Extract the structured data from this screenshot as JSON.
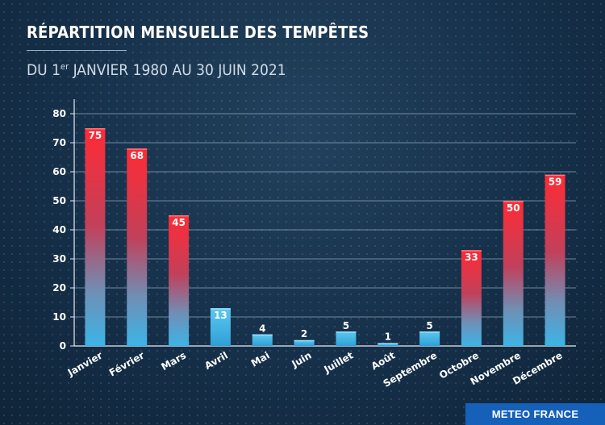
{
  "header": {
    "title": "RÉPARTITION MENSUELLE DES TEMPÊTES",
    "subtitle_pre": "DU 1",
    "subtitle_sup": "er",
    "subtitle_post": " JANVIER 1980 AU 30 JUIN 2021"
  },
  "brand": {
    "label": "METEO FRANCE"
  },
  "colors": {
    "high": "#e8303a",
    "low": "#3bb0e0",
    "background": "#16304a",
    "brand": "#1560b8"
  },
  "chart_data": {
    "type": "bar",
    "categories": [
      "Janvier",
      "Février",
      "Mars",
      "Avril",
      "Mai",
      "Juin",
      "Juillet",
      "Août",
      "Septembre",
      "Octobre",
      "Novembre",
      "Décembre"
    ],
    "values": [
      75,
      68,
      45,
      13,
      4,
      2,
      5,
      1,
      5,
      33,
      50,
      59
    ],
    "ylim": [
      0,
      80
    ],
    "yticks": [
      0,
      10,
      20,
      30,
      40,
      50,
      60,
      70,
      80
    ],
    "grid": true,
    "title": "RÉPARTITION MENSUELLE DES TEMPÊTES",
    "xlabel": "",
    "ylabel": ""
  }
}
